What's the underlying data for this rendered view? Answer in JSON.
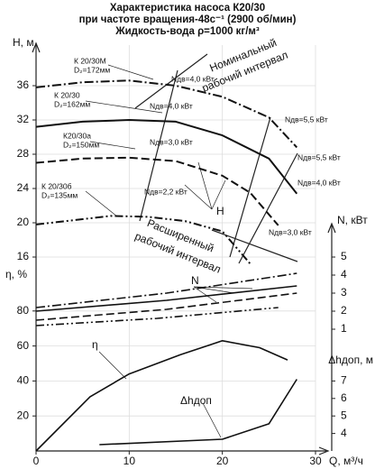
{
  "chart_data": {
    "type": "line",
    "title": "Характеристика насоса К20/30",
    "subtitles": [
      "при частоте вращения-48с⁻¹ (2900 об/мин)",
      "Жидкость-вода ρ=1000 кг/м³"
    ],
    "xlabel": "Q, м³/ч",
    "xlim": [
      0,
      30
    ],
    "xticks": [
      0,
      10,
      20,
      30
    ],
    "grid": true,
    "axes": {
      "H": {
        "label": "H, м",
        "lim": [
          12,
          40
        ],
        "ticks": [
          16,
          20,
          24,
          28,
          32,
          36
        ]
      },
      "eta": {
        "label": "η, %",
        "lim": [
          0,
          100
        ],
        "ticks": [
          20,
          40,
          60,
          80
        ]
      },
      "N": {
        "label": "N, кВт",
        "lim": [
          0,
          6
        ],
        "ticks": [
          1,
          2,
          3,
          4,
          5
        ]
      },
      "dh": {
        "label": "Δhдоп, м",
        "lim": [
          3,
          8
        ],
        "ticks": [
          4,
          5,
          6,
          7
        ]
      }
    },
    "series": [
      {
        "axis": "H",
        "dash": "dash-dot",
        "color": "#111",
        "x": [
          0,
          5,
          10,
          15,
          20,
          25,
          28
        ],
        "values": [
          35.8,
          36.4,
          36.6,
          36,
          34.7,
          32.3,
          28.8
        ]
      },
      {
        "axis": "H",
        "dash": "solid",
        "color": "#111",
        "x": [
          0,
          5,
          10,
          15,
          20,
          25,
          28
        ],
        "values": [
          31.2,
          31.8,
          32,
          31.8,
          30.2,
          27.5,
          23.4
        ]
      },
      {
        "axis": "H",
        "dash": "dashed",
        "color": "#111",
        "x": [
          0,
          5,
          10,
          15,
          20,
          23,
          26
        ],
        "values": [
          27,
          27.5,
          27.6,
          27.2,
          25.5,
          23.5,
          19.7
        ]
      },
      {
        "axis": "H",
        "dash": "dash-dot-dot",
        "color": "#111",
        "x": [
          0,
          4,
          8,
          12,
          16,
          20,
          23
        ],
        "values": [
          19.8,
          20.3,
          20.8,
          20.7,
          20.2,
          19,
          15.2
        ]
      },
      {
        "axis": "N",
        "dash": "dash-dot",
        "color": "#111",
        "x": [
          0,
          14,
          28
        ],
        "values": [
          2.2,
          3,
          4.1
        ]
      },
      {
        "axis": "N",
        "dash": "solid",
        "color": "#111",
        "x": [
          0,
          14,
          28
        ],
        "values": [
          2,
          2.6,
          3.4
        ]
      },
      {
        "axis": "N",
        "dash": "dashed",
        "color": "#111",
        "x": [
          0,
          14,
          28
        ],
        "values": [
          1.5,
          2.1,
          3
        ]
      },
      {
        "axis": "N",
        "dash": "dash-dot-dot",
        "color": "#111",
        "x": [
          0,
          13,
          26
        ],
        "values": [
          1.2,
          1.6,
          2.2
        ]
      },
      {
        "axis": "eta",
        "dash": "solid",
        "color": "#111",
        "x": [
          0,
          5.8,
          10,
          15.5,
          20,
          24,
          27
        ],
        "values": [
          0,
          31,
          44,
          55,
          63,
          59,
          52
        ]
      },
      {
        "axis": "dh",
        "dash": "solid",
        "color": "#111",
        "x": [
          6.8,
          20,
          25,
          28
        ],
        "values": [
          3.36,
          3.67,
          4.55,
          7.1
        ]
      }
    ],
    "annotations": [
      "К 20/30М",
      "D₂=172мм",
      "К 20/30",
      "D₂=162мм",
      "К20/30а",
      "D₂=150мм",
      "К 20/30б",
      "D₂=135мм",
      "Nдв=4,0 кВт",
      "Nдв=4,0 кВт",
      "Nдв=3,0 кВт",
      "Nдв=2,2 кВт",
      "Nдв=5,5 кВт",
      "Nдв=5,5 кВт",
      "Nдв=4,0 кВт",
      "Nдв=3,0 кВт",
      "Номинальный",
      "рабочий интервал",
      "Расширенный",
      "рабочий интервал",
      "H",
      "N",
      "η",
      "Δhдоп"
    ]
  }
}
